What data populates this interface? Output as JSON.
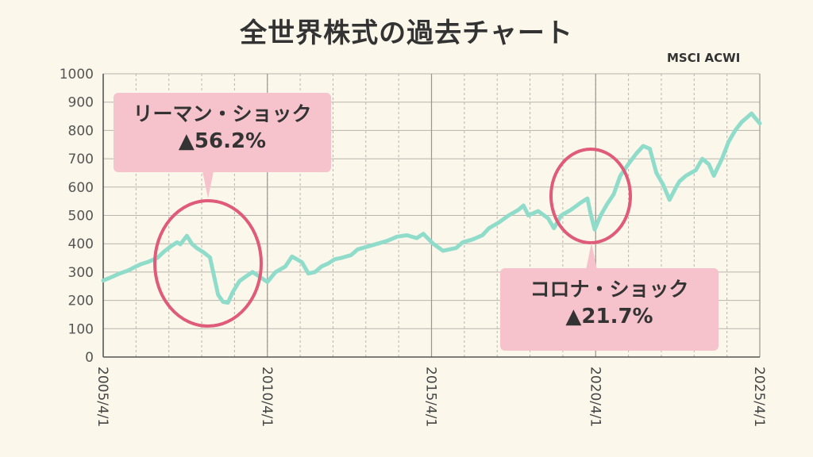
{
  "title": "全世界株式の過去チャート",
  "index_label": "MSCI ACWI",
  "colors": {
    "line": "#8fdccb",
    "circle": "#e05a79",
    "callout_bg": "#f6c3cc",
    "background": "#fbf7ea"
  },
  "callouts": [
    {
      "name": "リーマン・ショック",
      "drop": "▲56.2%"
    },
    {
      "name": "コロナ・ショック",
      "drop": "▲21.7%"
    }
  ],
  "chart_data": {
    "type": "line",
    "title": "全世界株式の過去チャート",
    "series_label": "MSCI ACWI",
    "ylim": [
      0,
      1000
    ],
    "yticks": [
      0,
      100,
      200,
      300,
      400,
      500,
      600,
      700,
      800,
      900,
      1000
    ],
    "xlim": [
      2005.25,
      2025.25
    ],
    "xtick_labels": [
      "2005/4/1",
      "2010/4/1",
      "2015/4/1",
      "2020/4/1",
      "2025/4/1"
    ],
    "grid": true,
    "x": [
      2005.25,
      2005.5,
      2005.75,
      2006.0,
      2006.25,
      2006.4,
      2006.6,
      2006.9,
      2007.1,
      2007.3,
      2007.5,
      2007.6,
      2007.8,
      2007.95,
      2008.1,
      2008.3,
      2008.5,
      2008.6,
      2008.75,
      2008.9,
      2009.05,
      2009.2,
      2009.4,
      2009.6,
      2009.8,
      2010.0,
      2010.25,
      2010.5,
      2010.8,
      2011.0,
      2011.3,
      2011.5,
      2011.7,
      2011.9,
      2012.1,
      2012.3,
      2012.5,
      2012.8,
      2013.0,
      2013.3,
      2013.6,
      2013.9,
      2014.2,
      2014.5,
      2014.8,
      2015.0,
      2015.3,
      2015.6,
      2015.8,
      2016.0,
      2016.2,
      2016.5,
      2016.8,
      2017.0,
      2017.3,
      2017.6,
      2017.9,
      2018.05,
      2018.2,
      2018.5,
      2018.8,
      2018.98,
      2019.2,
      2019.5,
      2019.8,
      2020.0,
      2020.1,
      2020.22,
      2020.4,
      2020.6,
      2020.8,
      2021.0,
      2021.3,
      2021.5,
      2021.7,
      2021.9,
      2022.1,
      2022.3,
      2022.5,
      2022.7,
      2022.8,
      2023.0,
      2023.3,
      2023.5,
      2023.7,
      2023.85,
      2024.1,
      2024.3,
      2024.5,
      2024.7,
      2024.9,
      2025.0,
      2025.1,
      2025.25
    ],
    "values": [
      270,
      282,
      295,
      305,
      320,
      328,
      335,
      350,
      372,
      390,
      405,
      398,
      428,
      400,
      385,
      370,
      352,
      300,
      220,
      195,
      192,
      230,
      268,
      285,
      300,
      285,
      265,
      300,
      320,
      355,
      335,
      295,
      300,
      320,
      330,
      345,
      350,
      360,
      380,
      390,
      400,
      410,
      425,
      430,
      420,
      435,
      400,
      375,
      380,
      385,
      405,
      415,
      430,
      455,
      475,
      500,
      520,
      535,
      500,
      515,
      490,
      455,
      500,
      520,
      545,
      560,
      505,
      450,
      500,
      540,
      575,
      640,
      690,
      720,
      745,
      735,
      650,
      610,
      555,
      600,
      620,
      640,
      660,
      700,
      680,
      640,
      700,
      760,
      800,
      830,
      850,
      860,
      845,
      825
    ]
  }
}
